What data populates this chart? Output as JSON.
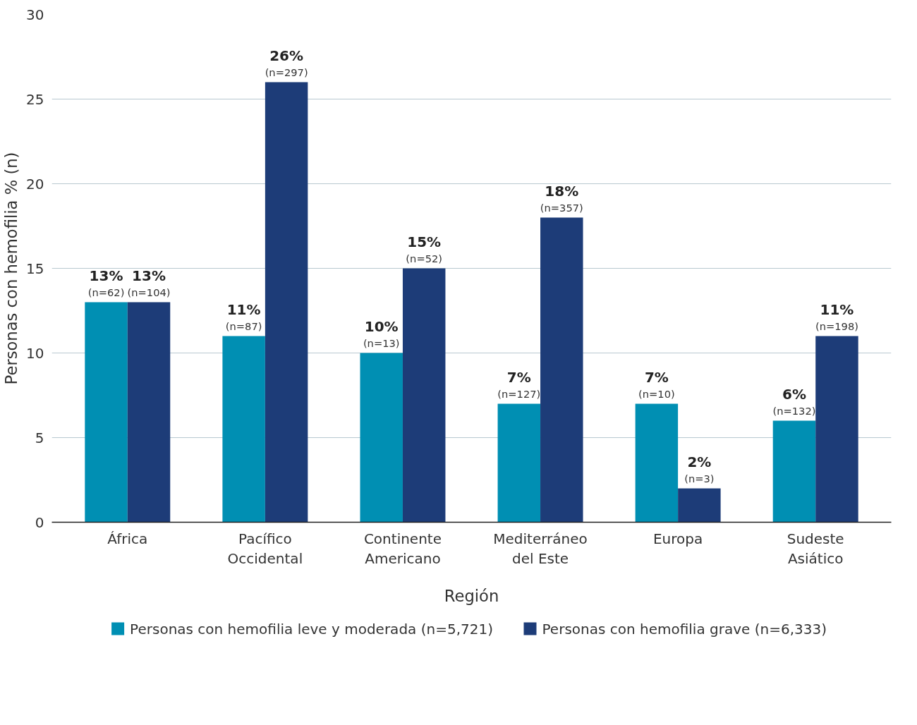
{
  "chart_data": {
    "type": "bar",
    "xlabel": "Región",
    "ylabel": "Personas con hemofilia % (n)",
    "categories": [
      "África",
      "Pacífico\nOccidental",
      "Continente\nAmericano",
      "Mediterráneo\ndel Este",
      "Europa",
      "Sudeste\nAsiático"
    ],
    "series": [
      {
        "name": "Personas con hemofilia leve y moderada (n=5,721)",
        "color": "#008fb3",
        "values": [
          13,
          11,
          10,
          7,
          7,
          6
        ],
        "value_labels": [
          "13%\n(n=62)",
          "11%\n(n=87)",
          "10%\n(n=13)",
          "7%\n(n=127)",
          "7%\n(n=10)",
          "6%\n(n=132)"
        ]
      },
      {
        "name": "Personas con hemofilia grave (n=6,333)",
        "color": "#1d3c78",
        "values": [
          13,
          26,
          15,
          18,
          2,
          11
        ],
        "value_labels": [
          "13%\n(n=104)",
          "26%\n(n=297)",
          "15%\n(n=52)",
          "18%\n(n=357)",
          "2%\n(n=3)",
          "11%\n(n=198)"
        ]
      }
    ],
    "ylim": [
      0,
      30
    ],
    "yticks": [
      0,
      5,
      10,
      15,
      20,
      25,
      30
    ],
    "grid": "y",
    "legend": "bottom"
  }
}
